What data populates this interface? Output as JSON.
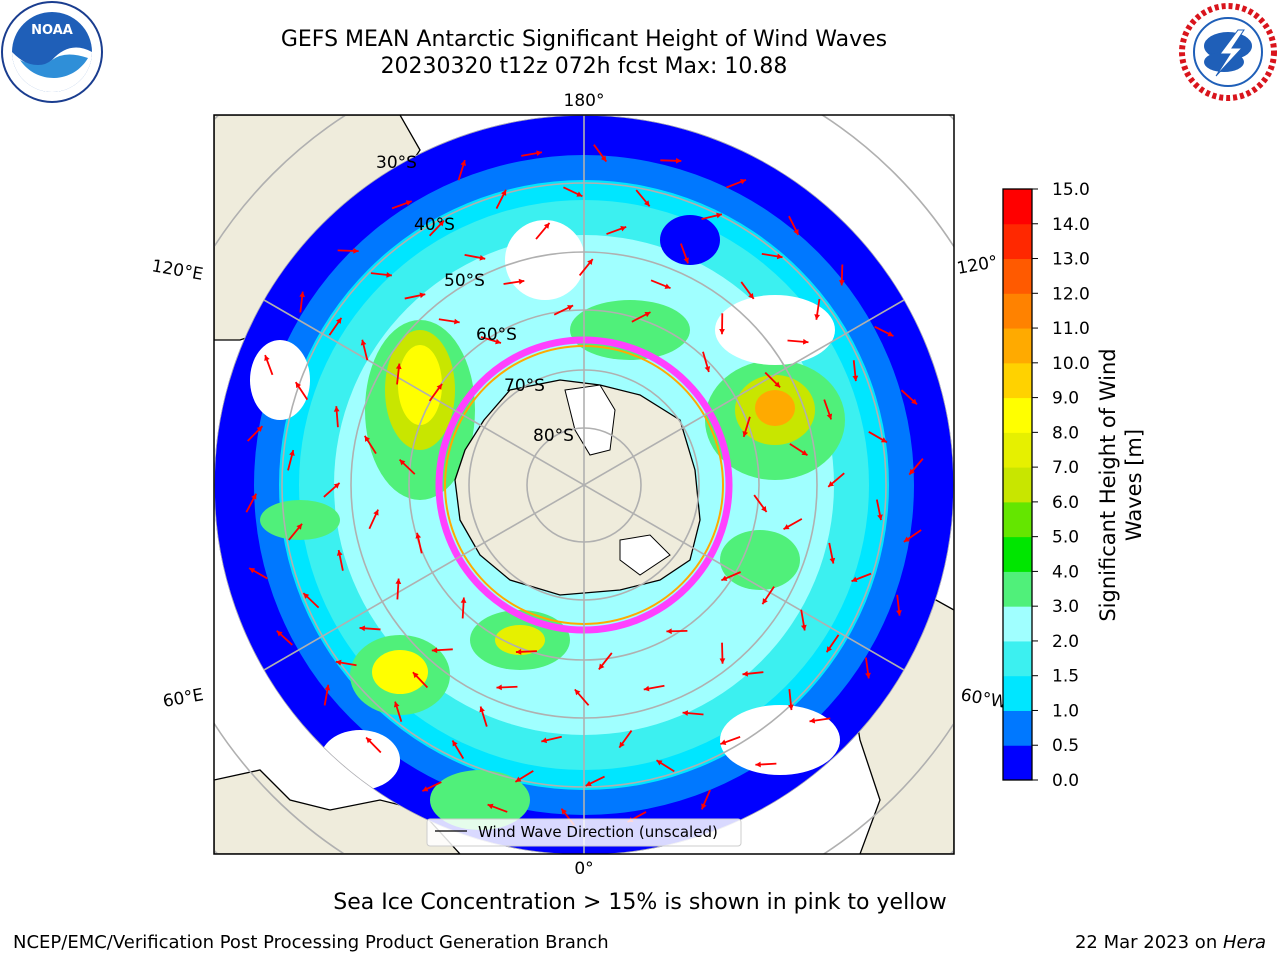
{
  "title": {
    "line1": "GEFS MEAN Antarctic Significant Height of Wind Waves",
    "line2": "20230320 t12z 072h fcst   Max: 10.88"
  },
  "map": {
    "projection": "south-polar-stereographic",
    "lon_labels": {
      "top": "180°",
      "bottom": "0°",
      "left_upper": "120°E",
      "left_lower": "60°E",
      "right_upper": "120°",
      "right_lower": "60°W"
    },
    "lat_labels": [
      "30°S",
      "40°S",
      "50°S",
      "60°S",
      "70°S",
      "80°S"
    ],
    "legend_label": "Wind Wave Direction (unscaled)",
    "colors": {
      "land": "#efecdc",
      "grid": "#b0b0b0",
      "arrows": "#ff0000",
      "ice_edge": "#ff40ff"
    }
  },
  "colorbar": {
    "title": "Significant Height of Wind Waves [m]",
    "ticks": [
      "0.0",
      "0.5",
      "1.0",
      "1.5",
      "2.0",
      "3.0",
      "4.0",
      "5.0",
      "6.0",
      "7.0",
      "8.0",
      "9.0",
      "10.0",
      "11.0",
      "12.0",
      "13.0",
      "14.0",
      "15.0"
    ],
    "colors": [
      "#0000ff",
      "#0078ff",
      "#00e6ff",
      "#3cf0f0",
      "#a0ffff",
      "#50f07a",
      "#00e600",
      "#64e600",
      "#c8e600",
      "#e6f000",
      "#ffff00",
      "#ffd200",
      "#ffaa00",
      "#ff8200",
      "#ff5a00",
      "#ff2800",
      "#ff0000"
    ]
  },
  "ice_note": "Sea Ice Concentration > 15% is shown in pink to yellow",
  "footer": {
    "left": "NCEP/EMC/Verification Post Processing Product Generation Branch",
    "right_date": "22 Mar 2023 on ",
    "right_machine": "Hera"
  },
  "logos": {
    "left": "noaa-logo",
    "right": "nws-logo"
  }
}
